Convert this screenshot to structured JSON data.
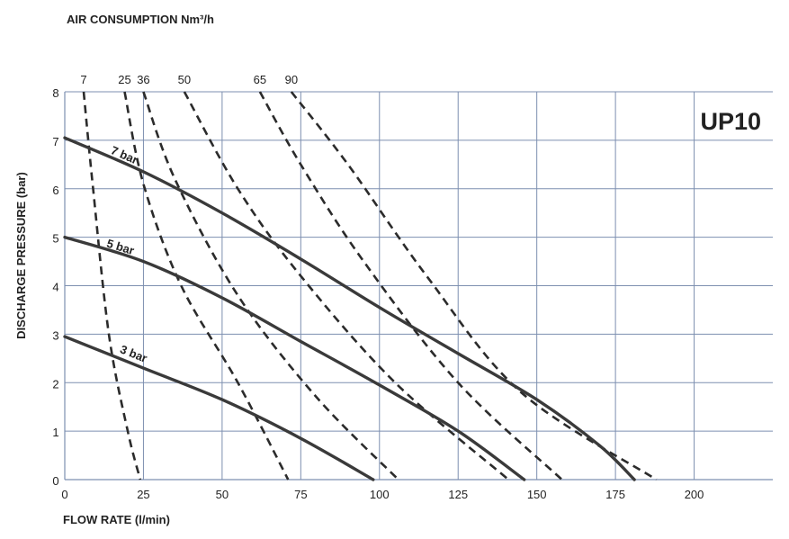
{
  "chart_data": {
    "type": "line",
    "model_label": "UP10",
    "top_label": "AIR CONSUMPTION Nm³/h",
    "xlabel": "FLOW RATE (l/min)",
    "ylabel": "DISCHARGE PRESSURE (bar)",
    "xlim": [
      0,
      225
    ],
    "ylim": [
      0,
      8
    ],
    "x_ticks": [
      0,
      25,
      50,
      75,
      100,
      125,
      150,
      175,
      200
    ],
    "y_ticks": [
      0,
      1,
      2,
      3,
      4,
      5,
      6,
      7,
      8
    ],
    "grid": true,
    "series": [
      {
        "name": "7 bar",
        "style": "solid",
        "points": [
          [
            0,
            7.05
          ],
          [
            25,
            6.35
          ],
          [
            50,
            5.5
          ],
          [
            75,
            4.55
          ],
          [
            100,
            3.55
          ],
          [
            125,
            2.6
          ],
          [
            150,
            1.65
          ],
          [
            170,
            0.7
          ],
          [
            181,
            0
          ]
        ]
      },
      {
        "name": "5 bar",
        "style": "solid",
        "points": [
          [
            0,
            5.0
          ],
          [
            25,
            4.5
          ],
          [
            50,
            3.75
          ],
          [
            75,
            2.85
          ],
          [
            100,
            1.95
          ],
          [
            125,
            1.0
          ],
          [
            146,
            0
          ]
        ]
      },
      {
        "name": "3 bar",
        "style": "solid",
        "points": [
          [
            0,
            2.95
          ],
          [
            25,
            2.3
          ],
          [
            50,
            1.65
          ],
          [
            75,
            0.85
          ],
          [
            98,
            0
          ]
        ]
      }
    ],
    "air_consumption_curves": [
      {
        "name": "7",
        "style": "dashed",
        "points": [
          [
            6,
            8
          ],
          [
            9,
            6
          ],
          [
            14,
            3
          ],
          [
            20,
            1
          ],
          [
            24,
            0
          ]
        ]
      },
      {
        "name": "25",
        "style": "dashed",
        "points": [
          [
            19,
            8
          ],
          [
            25,
            6.1
          ],
          [
            37,
            4
          ],
          [
            55,
            2
          ],
          [
            71,
            0
          ]
        ]
      },
      {
        "name": "36",
        "style": "dashed",
        "points": [
          [
            25,
            8
          ],
          [
            35,
            6.2
          ],
          [
            55,
            3.8
          ],
          [
            80,
            1.7
          ],
          [
            106,
            0
          ]
        ]
      },
      {
        "name": "50",
        "style": "dashed",
        "points": [
          [
            38,
            8
          ],
          [
            55,
            6
          ],
          [
            75,
            4.2
          ],
          [
            105,
            2
          ],
          [
            141,
            0
          ]
        ]
      },
      {
        "name": "65",
        "style": "dashed",
        "points": [
          [
            62,
            8
          ],
          [
            75,
            6.5
          ],
          [
            95,
            4.5
          ],
          [
            125,
            2
          ],
          [
            158,
            0
          ]
        ]
      },
      {
        "name": "90",
        "style": "dashed",
        "points": [
          [
            72,
            8
          ],
          [
            90,
            6.5
          ],
          [
            115,
            4.2
          ],
          [
            145,
            1.8
          ],
          [
            188,
            0
          ]
        ]
      }
    ]
  }
}
